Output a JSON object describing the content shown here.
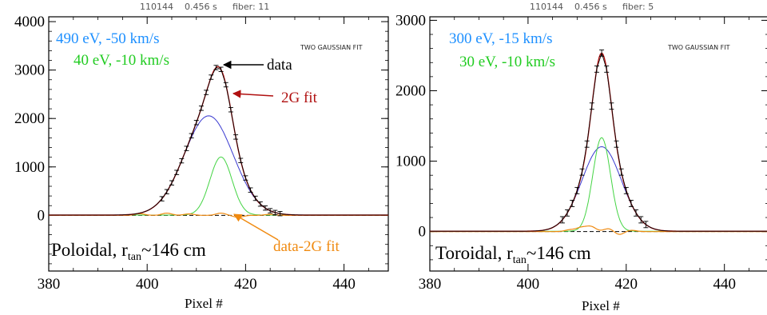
{
  "colors": {
    "data": "#000000",
    "fit": "#b01010",
    "broad": "#3a3ad0",
    "narrow": "#44d444",
    "residual": "#f08a10",
    "legend_broad": "#1e90ff",
    "legend_narrow": "#22cc22",
    "arrow_fit": "#b01010",
    "arrow_resid": "#f08a10"
  },
  "chart_data": [
    {
      "type": "line",
      "header": {
        "shot": "110144",
        "time": "0.456 s",
        "fiber": "fiber: 11"
      },
      "fit_label": "TWO GAUSSIAN FIT",
      "xlabel": "Pixel #",
      "xlim": [
        380,
        449
      ],
      "ylim": [
        -1150,
        4100
      ],
      "xticks": [
        380,
        400,
        420,
        440
      ],
      "yticks": [
        0,
        1000,
        2000,
        3000,
        4000
      ],
      "legend": {
        "broad": "490 eV, -50 km/s",
        "narrow": "40 eV, -10 km/s"
      },
      "annotations": {
        "data": "data",
        "fit": "2G fit",
        "residual": "data-2G fit"
      },
      "caption": {
        "main": "Poloidal, r",
        "sub": "tan",
        "rest": "~146 cm"
      },
      "model": {
        "baseline": 5,
        "broad": {
          "amp": 2050,
          "center": 412.5,
          "sigma": 5.0
        },
        "narrow": {
          "amp": 1200,
          "center": 415.0,
          "sigma": 2.25
        }
      },
      "peak": {
        "x": 414.3,
        "y": 3150
      },
      "residual_bumps": [
        [
          398.5,
          35
        ],
        [
          404.0,
          45
        ],
        [
          408.5,
          30
        ],
        [
          415.0,
          45
        ],
        [
          418.5,
          -40
        ],
        [
          425.0,
          22
        ]
      ],
      "error_bars": {
        "x_from": 403,
        "x_to": 427,
        "half_height": 45
      }
    },
    {
      "type": "line",
      "header": {
        "shot": "110144",
        "time": "0.456 s",
        "fiber": "fiber: 5"
      },
      "fit_label": "TWO GAUSSIAN FIT",
      "xlabel": "Pixel #",
      "xlim": [
        380,
        449
      ],
      "ylim": [
        -560,
        3050
      ],
      "xticks": [
        380,
        400,
        420,
        440
      ],
      "yticks": [
        0,
        1000,
        2000,
        3000
      ],
      "legend": {
        "broad": "300 eV, -15 km/s",
        "narrow": "30 eV, -10 km/s"
      },
      "annotations": {},
      "caption": {
        "main": "Toroidal, r",
        "sub": "tan",
        "rest": "~146 cm"
      },
      "model": {
        "baseline": 5,
        "broad": {
          "amp": 1200,
          "center": 415.0,
          "sigma": 4.0
        },
        "narrow": {
          "amp": 1330,
          "center": 415.0,
          "sigma": 1.8
        }
      },
      "peak": {
        "x": 415.0,
        "y": 2560
      },
      "residual_bumps": [
        [
          408.5,
          25
        ],
        [
          410.8,
          55
        ],
        [
          412.8,
          70
        ],
        [
          416.5,
          45
        ],
        [
          418.5,
          -45
        ],
        [
          421.0,
          20
        ]
      ],
      "error_bars": {
        "x_from": 407,
        "x_to": 424,
        "half_height": 45
      }
    }
  ]
}
